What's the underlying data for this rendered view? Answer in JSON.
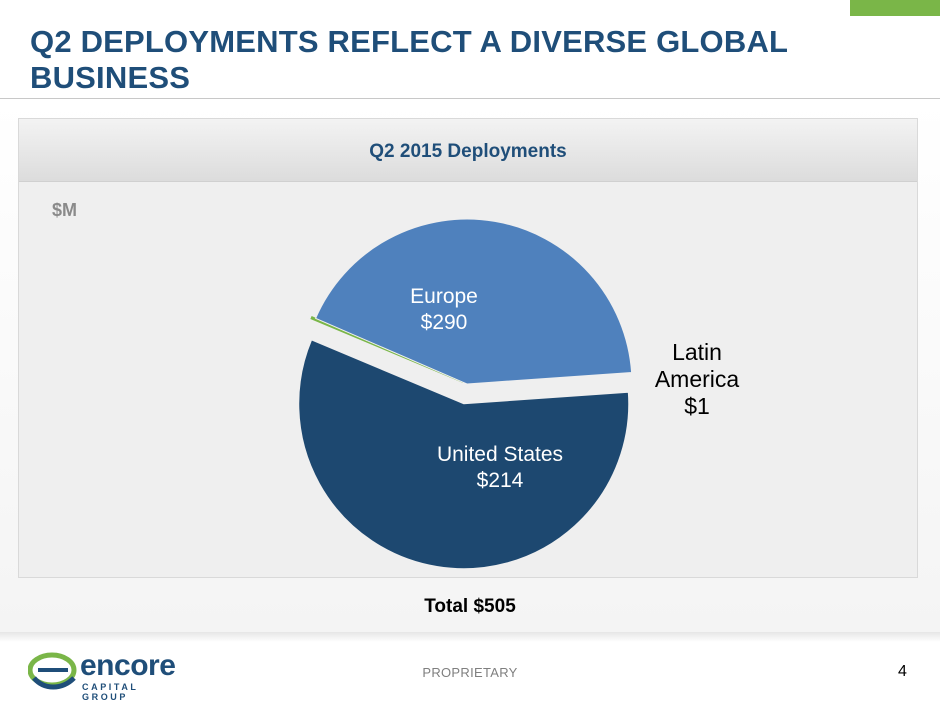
{
  "slide": {
    "title": "Q2 DEPLOYMENTS REFLECT A DIVERSE GLOBAL BUSINESS",
    "unit_label": "$M",
    "total_label": "Total $505",
    "footer_label": "PROPRIETARY",
    "page_number": "4"
  },
  "logo": {
    "word": "encore",
    "sub": "CAPITAL GROUP"
  },
  "colors": {
    "title": "#1f4e79",
    "accent_green": "#7ab648",
    "europe": "#1d4870",
    "united_states": "#4f81bd",
    "latin_america": "#7ab648"
  },
  "chart_data": {
    "type": "pie",
    "title": "Q2 2015 Deployments",
    "unit": "$M",
    "total": 505,
    "slices": [
      {
        "name": "Europe",
        "value": 290,
        "value_label": "$290",
        "color": "#1d4870",
        "label_color": "#ffffff"
      },
      {
        "name": "Latin America",
        "value": 1,
        "value_label": "$1",
        "color": "#7ab648",
        "label_color": "#000000"
      },
      {
        "name": "United States",
        "value": 214,
        "value_label": "$214",
        "color": "#4f81bd",
        "label_color": "#ffffff"
      }
    ]
  }
}
